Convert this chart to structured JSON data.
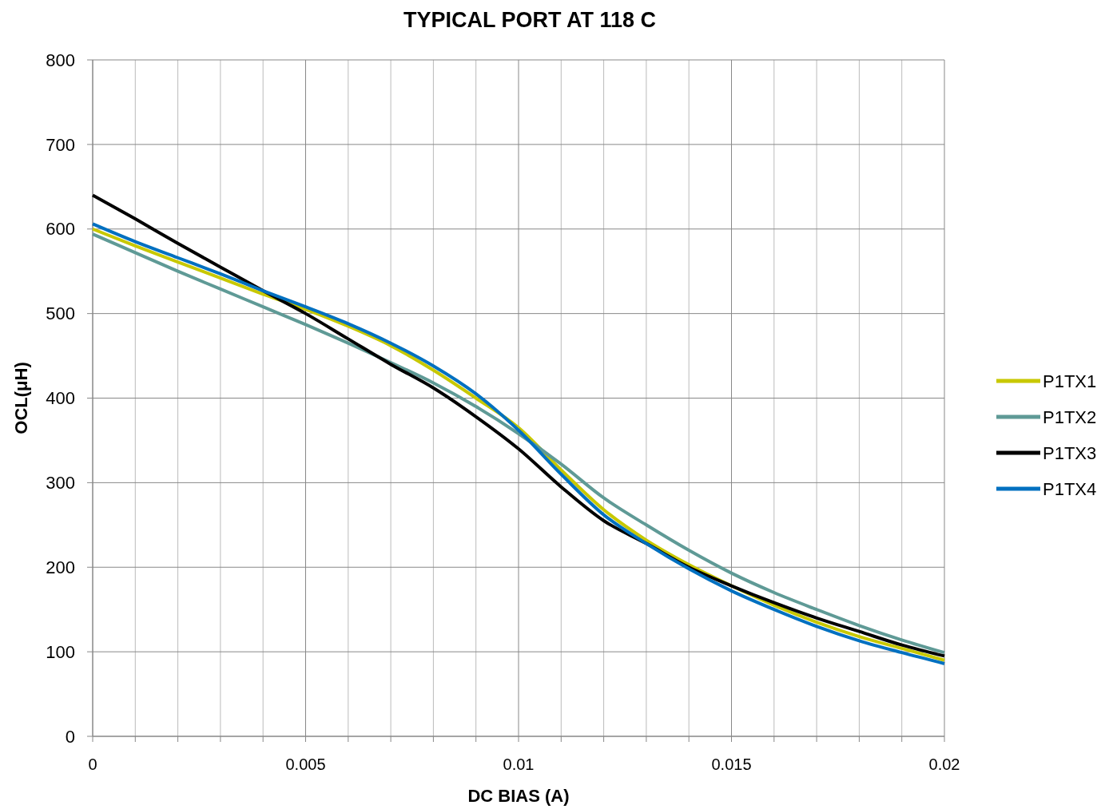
{
  "chart_data": {
    "type": "line",
    "title": "TYPICAL PORT AT 118 C",
    "xlabel": "DC BIAS (A)",
    "ylabel": "OCL(μH)",
    "x": [
      0,
      0.001,
      0.002,
      0.003,
      0.004,
      0.005,
      0.006,
      0.007,
      0.008,
      0.009,
      0.01,
      0.011,
      0.012,
      0.013,
      0.014,
      0.015,
      0.016,
      0.017,
      0.018,
      0.019,
      0.02
    ],
    "series": [
      {
        "name": "P1TX1",
        "color": "#c8c800",
        "values": [
          600,
          580,
          561,
          542,
          523,
          505,
          485,
          462,
          433,
          400,
          365,
          315,
          268,
          232,
          203,
          178,
          155,
          135,
          118,
          104,
          90
        ]
      },
      {
        "name": "P1TX2",
        "color": "#5f9a96",
        "values": [
          594,
          572,
          550,
          529,
          508,
          487,
          465,
          442,
          418,
          390,
          358,
          322,
          282,
          250,
          220,
          193,
          170,
          150,
          131,
          114,
          99
        ]
      },
      {
        "name": "P1TX3",
        "color": "#000000",
        "values": [
          640,
          612,
          583,
          555,
          527,
          500,
          470,
          440,
          412,
          378,
          340,
          295,
          255,
          228,
          200,
          178,
          158,
          140,
          124,
          108,
          95
        ]
      },
      {
        "name": "P1TX4",
        "color": "#0070c0",
        "values": [
          606,
          585,
          566,
          547,
          527,
          508,
          488,
          465,
          438,
          405,
          362,
          310,
          262,
          228,
          198,
          172,
          150,
          130,
          113,
          99,
          86
        ]
      }
    ],
    "xlim": [
      0,
      0.02
    ],
    "xticks": [
      0,
      {
        "value": 0.001,
        "label": null
      },
      {
        "value": 0.002,
        "label": null
      },
      {
        "value": 0.003,
        "label": null
      },
      {
        "value": 0.004,
        "label": null
      },
      0.005,
      {
        "value": 0.006,
        "label": null
      },
      {
        "value": 0.007,
        "label": null
      },
      {
        "value": 0.008,
        "label": null
      },
      {
        "value": 0.009,
        "label": null
      },
      0.01,
      {
        "value": 0.011,
        "label": null
      },
      {
        "value": 0.012,
        "label": null
      },
      {
        "value": 0.013,
        "label": null
      },
      {
        "value": 0.014,
        "label": null
      },
      0.015,
      {
        "value": 0.016,
        "label": null
      },
      {
        "value": 0.017,
        "label": null
      },
      {
        "value": 0.018,
        "label": null
      },
      {
        "value": 0.019,
        "label": null
      },
      0.02
    ],
    "ylim": [
      0,
      800
    ],
    "yticks": [
      0,
      100,
      200,
      300,
      400,
      500,
      600,
      700,
      800
    ],
    "grid": true,
    "legend": "right",
    "marker": "none",
    "line_style": "solid"
  }
}
